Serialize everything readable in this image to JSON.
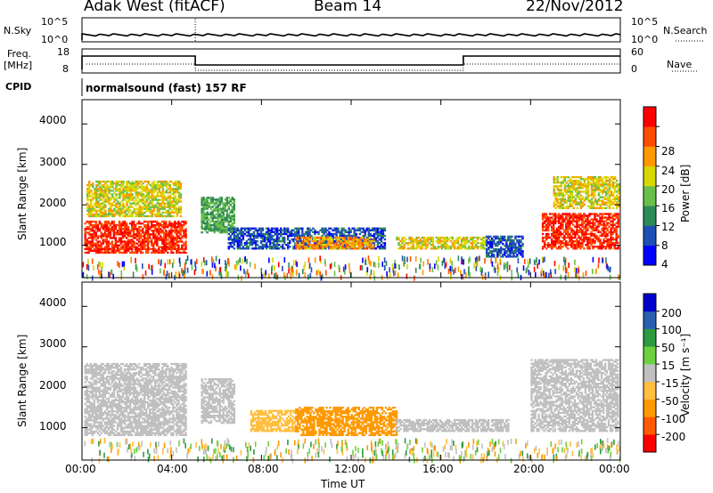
{
  "header": {
    "station": "Adak West (fitACF)",
    "beam": "Beam 14",
    "date": "22/Nov/2012"
  },
  "panels": {
    "nsky": {
      "label": "N.Sky",
      "right_label": "N.Search",
      "ticks_left": [
        "10^5",
        "10^0"
      ],
      "ticks_right": [
        "10^5",
        "10^0"
      ]
    },
    "freq": {
      "label_line1": "Freq.",
      "label_line2": "[MHz]",
      "right_label": "Nave",
      "ticks_left": [
        "18",
        "8"
      ],
      "ticks_right": [
        "60",
        "0"
      ]
    },
    "cpid": {
      "label": "CPID",
      "text": "normalsound (fast) 157 RF"
    }
  },
  "chart_data": [
    {
      "type": "heatmap",
      "name": "power",
      "ylabel": "Slant Range [km]",
      "y_ticks": [
        "4000",
        "3000",
        "2000",
        "1000"
      ],
      "y_tick_values": [
        4000,
        3000,
        2000,
        1000
      ],
      "ylim": [
        200,
        4600
      ],
      "colorbar": {
        "label": "Power [dB]",
        "ticks": [
          "28",
          "24",
          "20",
          "16",
          "12",
          "8",
          "4"
        ],
        "tick_values": [
          28,
          24,
          20,
          16,
          12,
          8,
          4
        ],
        "range": [
          0,
          30
        ],
        "colors": [
          "#0000ff",
          "#1e4fb5",
          "#2e8b57",
          "#6abf4b",
          "#d8d800",
          "#ff9900",
          "#ff4d00",
          "#ff0000"
        ]
      },
      "blobs": [
        {
          "t0": 0.1,
          "t1": 4.6,
          "r0": 800,
          "r1": 1600,
          "level": 28
        },
        {
          "t0": 0.2,
          "t1": 4.4,
          "r0": 1700,
          "r1": 2600,
          "level": 18
        },
        {
          "t0": 5.3,
          "t1": 6.8,
          "r0": 1300,
          "r1": 2200,
          "level": 12
        },
        {
          "t0": 6.5,
          "t1": 13.5,
          "r0": 900,
          "r1": 1400,
          "level": 6
        },
        {
          "t0": 9.5,
          "t1": 13.0,
          "r0": 900,
          "r1": 1200,
          "level": 22
        },
        {
          "t0": 14.0,
          "t1": 18.0,
          "r0": 900,
          "r1": 1200,
          "level": 18
        },
        {
          "t0": 18.0,
          "t1": 19.6,
          "r0": 700,
          "r1": 1200,
          "level": 6
        },
        {
          "t0": 20.5,
          "t1": 23.9,
          "r0": 900,
          "r1": 1800,
          "level": 28
        },
        {
          "t0": 21.0,
          "t1": 23.9,
          "r0": 1900,
          "r1": 2700,
          "level": 18
        }
      ]
    },
    {
      "type": "heatmap",
      "name": "velocity",
      "ylabel": "Slant Range [km]",
      "y_ticks": [
        "4000",
        "3000",
        "2000",
        "1000"
      ],
      "y_tick_values": [
        4000,
        3000,
        2000,
        1000
      ],
      "ylim": [
        200,
        4600
      ],
      "colorbar": {
        "label": "Velocity [m s⁻¹]",
        "ticks": [
          "200",
          "100",
          "50",
          "15",
          "-15",
          "-50",
          "-100",
          "-200"
        ],
        "tick_values": [
          200,
          100,
          50,
          15,
          -15,
          -50,
          -100,
          -200
        ],
        "colors": [
          "#ff0000",
          "#ff5a00",
          "#ff9900",
          "#ffbf40",
          "#c0c0c0",
          "#6dd040",
          "#2e9a40",
          "#2a5fb0",
          "#0000cc"
        ]
      },
      "blobs": [
        {
          "t0": 0.1,
          "t1": 4.6,
          "r0": 800,
          "r1": 2600,
          "level": 0
        },
        {
          "t0": 5.3,
          "t1": 6.8,
          "r0": 1100,
          "r1": 2200,
          "level": 0
        },
        {
          "t0": 7.5,
          "t1": 9.5,
          "r0": 900,
          "r1": 1400,
          "level": -40
        },
        {
          "t0": 9.5,
          "t1": 14.0,
          "r0": 800,
          "r1": 1500,
          "level": -60
        },
        {
          "t0": 14.0,
          "t1": 19.0,
          "r0": 900,
          "r1": 1200,
          "level": 0
        },
        {
          "t0": 20.0,
          "t1": 23.9,
          "r0": 900,
          "r1": 2700,
          "level": 0
        }
      ]
    }
  ],
  "x_axis": {
    "label": "Time UT",
    "ticks": [
      "00:00",
      "04:00",
      "08:00",
      "12:00",
      "16:00",
      "20:00",
      "00:00"
    ],
    "tick_values": [
      0,
      4,
      8,
      12,
      16,
      20,
      24
    ]
  }
}
